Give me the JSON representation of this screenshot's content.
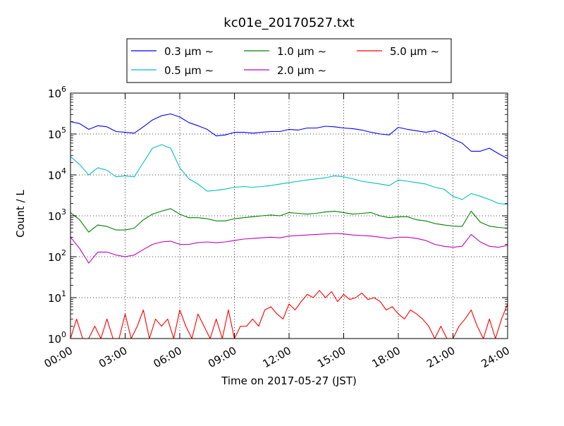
{
  "chart_data": {
    "type": "line",
    "title": "kc01e_20170527.txt",
    "xlabel": "Time on 2017-05-27 (JST)",
    "ylabel": "Count / L",
    "y_scale": "log",
    "ylim": [
      1,
      1000000
    ],
    "xlim": [
      "00:00",
      "24:00"
    ],
    "x_ticks": [
      "00:00",
      "03:00",
      "06:00",
      "09:00",
      "12:00",
      "15:00",
      "18:00",
      "21:00",
      "24:00"
    ],
    "y_ticks": [
      {
        "base": "10",
        "exp": "0",
        "value": 1
      },
      {
        "base": "10",
        "exp": "1",
        "value": 10
      },
      {
        "base": "10",
        "exp": "2",
        "value": 100
      },
      {
        "base": "10",
        "exp": "3",
        "value": 1000
      },
      {
        "base": "10",
        "exp": "4",
        "value": 10000
      },
      {
        "base": "10",
        "exp": "5",
        "value": 100000
      },
      {
        "base": "10",
        "exp": "6",
        "value": 1000000
      }
    ],
    "grid": true,
    "legend_placement": "top-center, above plot",
    "series": [
      {
        "name": "0.3 μm ∼",
        "color": "#0000ff",
        "x": [
          "00:00",
          "00:30",
          "01:00",
          "01:30",
          "02:00",
          "02:30",
          "03:00",
          "03:30",
          "04:00",
          "04:30",
          "05:00",
          "05:30",
          "06:00",
          "06:30",
          "07:00",
          "07:30",
          "08:00",
          "08:30",
          "09:00",
          "09:30",
          "10:00",
          "10:30",
          "11:00",
          "11:30",
          "12:00",
          "12:30",
          "13:00",
          "13:30",
          "14:00",
          "14:30",
          "15:00",
          "15:30",
          "16:00",
          "16:30",
          "17:00",
          "17:30",
          "18:00",
          "18:30",
          "19:00",
          "19:30",
          "20:00",
          "20:30",
          "21:00",
          "21:30",
          "22:00",
          "22:30",
          "23:00",
          "23:30",
          "24:00"
        ],
        "y": [
          200000,
          180000,
          130000,
          160000,
          150000,
          115000,
          110000,
          105000,
          150000,
          220000,
          280000,
          310000,
          260000,
          190000,
          160000,
          130000,
          90000,
          95000,
          110000,
          110000,
          105000,
          110000,
          115000,
          115000,
          130000,
          125000,
          140000,
          140000,
          155000,
          150000,
          140000,
          135000,
          125000,
          110000,
          100000,
          95000,
          145000,
          130000,
          120000,
          110000,
          120000,
          100000,
          75000,
          60000,
          38000,
          38000,
          45000,
          33000,
          25000
        ]
      },
      {
        "name": "0.5 μm ∼",
        "color": "#00bfbf",
        "x": [
          "00:00",
          "00:30",
          "01:00",
          "01:30",
          "02:00",
          "02:30",
          "03:00",
          "03:30",
          "04:00",
          "04:30",
          "05:00",
          "05:30",
          "06:00",
          "06:30",
          "07:00",
          "07:30",
          "08:00",
          "08:30",
          "09:00",
          "09:30",
          "10:00",
          "10:30",
          "11:00",
          "11:30",
          "12:00",
          "12:30",
          "13:00",
          "13:30",
          "14:00",
          "14:30",
          "15:00",
          "15:30",
          "16:00",
          "16:30",
          "17:00",
          "17:30",
          "18:00",
          "18:30",
          "19:00",
          "19:30",
          "20:00",
          "20:30",
          "21:00",
          "21:30",
          "22:00",
          "22:30",
          "23:00",
          "23:30",
          "24:00"
        ],
        "y": [
          28000,
          18000,
          10000,
          15000,
          13000,
          9000,
          9500,
          9000,
          20000,
          45000,
          55000,
          45000,
          15000,
          8000,
          6000,
          4000,
          4200,
          4500,
          5000,
          5200,
          5000,
          5200,
          5500,
          6000,
          6500,
          7000,
          7500,
          8000,
          8500,
          9500,
          9000,
          8000,
          7000,
          6500,
          6000,
          5500,
          7500,
          7000,
          6500,
          6000,
          5000,
          4500,
          3000,
          2500,
          3500,
          3000,
          2500,
          2000,
          1900
        ]
      },
      {
        "name": "1.0 μm ∼",
        "color": "#008000",
        "x": [
          "00:00",
          "00:30",
          "01:00",
          "01:30",
          "02:00",
          "02:30",
          "03:00",
          "03:30",
          "04:00",
          "04:30",
          "05:00",
          "05:30",
          "06:00",
          "06:30",
          "07:00",
          "07:30",
          "08:00",
          "08:30",
          "09:00",
          "09:30",
          "10:00",
          "10:30",
          "11:00",
          "11:30",
          "12:00",
          "12:30",
          "13:00",
          "13:30",
          "14:00",
          "14:30",
          "15:00",
          "15:30",
          "16:00",
          "16:30",
          "17:00",
          "17:30",
          "18:00",
          "18:30",
          "19:00",
          "19:30",
          "20:00",
          "20:30",
          "21:00",
          "21:30",
          "22:00",
          "22:30",
          "23:00",
          "23:30",
          "24:00"
        ],
        "y": [
          1200,
          800,
          400,
          600,
          550,
          450,
          450,
          500,
          800,
          1100,
          1300,
          1500,
          1100,
          900,
          900,
          850,
          750,
          750,
          850,
          900,
          950,
          1000,
          1050,
          1000,
          1200,
          1150,
          1100,
          1150,
          1250,
          1300,
          1200,
          1100,
          1150,
          1200,
          1000,
          900,
          950,
          950,
          800,
          750,
          650,
          600,
          560,
          550,
          1300,
          700,
          560,
          520,
          500
        ]
      },
      {
        "name": "2.0 μm ∼",
        "color": "#bf00bf",
        "x": [
          "00:00",
          "00:30",
          "01:00",
          "01:30",
          "02:00",
          "02:30",
          "03:00",
          "03:30",
          "04:00",
          "04:30",
          "05:00",
          "05:30",
          "06:00",
          "06:30",
          "07:00",
          "07:30",
          "08:00",
          "08:30",
          "09:00",
          "09:30",
          "10:00",
          "10:30",
          "11:00",
          "11:30",
          "12:00",
          "12:30",
          "13:00",
          "13:30",
          "14:00",
          "14:30",
          "15:00",
          "15:30",
          "16:00",
          "16:30",
          "17:00",
          "17:30",
          "18:00",
          "18:30",
          "19:00",
          "19:30",
          "20:00",
          "20:30",
          "21:00",
          "21:30",
          "22:00",
          "22:30",
          "23:00",
          "23:30",
          "24:00"
        ],
        "y": [
          300,
          160,
          70,
          130,
          130,
          110,
          100,
          110,
          150,
          200,
          230,
          240,
          200,
          200,
          220,
          230,
          220,
          230,
          250,
          270,
          280,
          290,
          300,
          290,
          320,
          330,
          340,
          350,
          360,
          370,
          360,
          340,
          330,
          320,
          300,
          280,
          300,
          300,
          280,
          250,
          200,
          180,
          170,
          180,
          350,
          230,
          180,
          170,
          190
        ]
      },
      {
        "name": "5.0 μm ∼",
        "color": "#ff0000",
        "x": [
          "00:00",
          "00:20",
          "00:40",
          "01:00",
          "01:20",
          "01:40",
          "02:00",
          "02:20",
          "02:40",
          "03:00",
          "03:20",
          "03:40",
          "04:00",
          "04:20",
          "04:40",
          "05:00",
          "05:20",
          "05:40",
          "06:00",
          "06:20",
          "06:40",
          "07:00",
          "07:20",
          "07:40",
          "08:00",
          "08:20",
          "08:40",
          "09:00",
          "09:20",
          "09:40",
          "10:00",
          "10:20",
          "10:40",
          "11:00",
          "11:20",
          "11:40",
          "12:00",
          "12:20",
          "12:40",
          "13:00",
          "13:20",
          "13:40",
          "14:00",
          "14:20",
          "14:40",
          "15:00",
          "15:20",
          "15:40",
          "16:00",
          "16:20",
          "16:40",
          "17:00",
          "17:20",
          "17:40",
          "18:00",
          "18:20",
          "18:40",
          "19:00",
          "19:20",
          "19:40",
          "20:00",
          "20:20",
          "20:40",
          "21:00",
          "21:20",
          "21:40",
          "22:00",
          "22:20",
          "22:40",
          "23:00",
          "23:20",
          "23:40",
          "24:00"
        ],
        "y": [
          1,
          3,
          1,
          1,
          2,
          1,
          3,
          1,
          1,
          4,
          1,
          2,
          5,
          1,
          3,
          2,
          3,
          1,
          5,
          2,
          1,
          4,
          2,
          1,
          3,
          1,
          5,
          1,
          2,
          2,
          3,
          2,
          5,
          6,
          4,
          3,
          7,
          5,
          8,
          12,
          10,
          15,
          10,
          14,
          8,
          12,
          9,
          10,
          13,
          9,
          10,
          8,
          5,
          6,
          4,
          3,
          5,
          4,
          3,
          2,
          1,
          2,
          1,
          1,
          2,
          3,
          5,
          2,
          1,
          3,
          1,
          3,
          7
        ]
      }
    ]
  }
}
